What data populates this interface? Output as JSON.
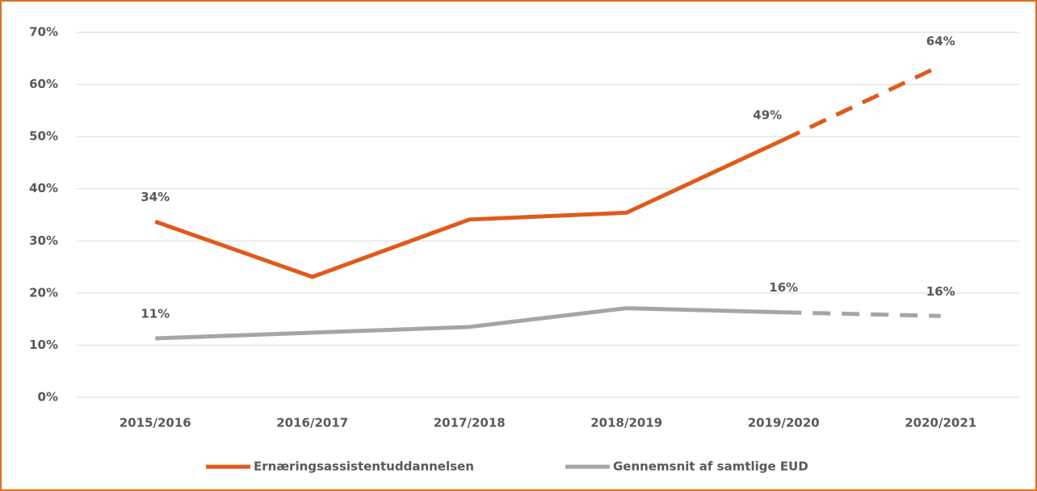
{
  "chart_data": {
    "type": "line",
    "categories": [
      "2015/2016",
      "2016/2017",
      "2017/2018",
      "2018/2019",
      "2019/2020",
      "2020/2021"
    ],
    "series": [
      {
        "name": "Ernæringsassistentuddannelsen",
        "color": "#e05a1b",
        "values": [
          33.7,
          23.1,
          34.1,
          35.4,
          49.4,
          63.6
        ],
        "value_labels": [
          "34%",
          null,
          null,
          null,
          "49%",
          "64%"
        ]
      },
      {
        "name": "Gennemsnit af samtlige EUD",
        "color": "#a5a5a5",
        "values": [
          11.3,
          12.4,
          13.5,
          17.1,
          16.3,
          15.6
        ],
        "value_labels": [
          "11%",
          null,
          null,
          null,
          "16%",
          "16%"
        ]
      }
    ],
    "ylim": [
      0,
      70
    ],
    "yticks": [
      {
        "value": 0,
        "label": "0%"
      },
      {
        "value": 10,
        "label": "10%"
      },
      {
        "value": 20,
        "label": "20%"
      },
      {
        "value": 30,
        "label": "30%"
      },
      {
        "value": 40,
        "label": "40%"
      },
      {
        "value": 50,
        "label": "50%"
      },
      {
        "value": 60,
        "label": "60%"
      },
      {
        "value": 70,
        "label": "70%"
      }
    ],
    "grid": true,
    "dashed_last_segment": true,
    "legend": "bottom"
  }
}
